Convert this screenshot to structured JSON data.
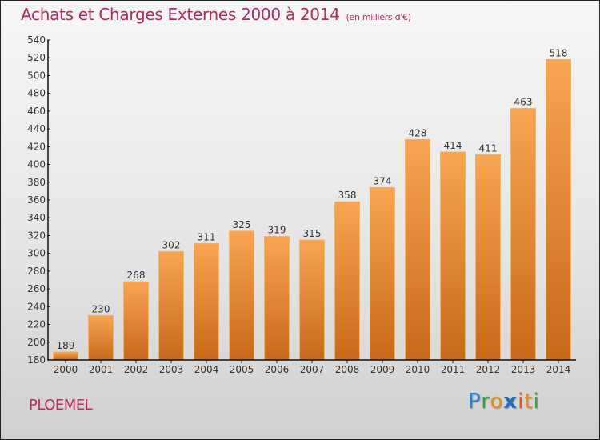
{
  "header": {
    "title": "Achats et Charges Externes 2000 à 2014",
    "unit": "(en milliers d'€)"
  },
  "footer": {
    "city": "PLOEMEL",
    "logo": {
      "letters": [
        {
          "char": "P",
          "color": "#2a7fd0"
        },
        {
          "char": "r",
          "color": "#3aa040"
        },
        {
          "char": "o",
          "color": "#f08a1a"
        },
        {
          "char": "x",
          "color": "#1e6fc8"
        },
        {
          "char": "i",
          "color": "#e8501e"
        },
        {
          "char": "t",
          "color": "#f08a1a"
        },
        {
          "char": "i",
          "color": "#3aa040"
        }
      ]
    }
  },
  "colors": {
    "bar_top": "#f8a552",
    "bar_bottom": "#c8691a",
    "title": "#b8285e"
  },
  "chart_data": {
    "type": "bar",
    "title": "Achats et Charges Externes 2000 à 2014",
    "subtitle": "(en milliers d'€)",
    "xlabel": "",
    "ylabel": "",
    "categories": [
      "2000",
      "2001",
      "2002",
      "2003",
      "2004",
      "2005",
      "2006",
      "2007",
      "2008",
      "2009",
      "2010",
      "2011",
      "2012",
      "2013",
      "2014"
    ],
    "values": [
      189,
      230,
      268,
      302,
      311,
      325,
      319,
      315,
      358,
      374,
      428,
      414,
      411,
      463,
      518
    ],
    "ylim": [
      180,
      540
    ],
    "yticks": [
      180,
      200,
      220,
      240,
      260,
      280,
      300,
      320,
      340,
      360,
      380,
      400,
      420,
      440,
      460,
      480,
      500,
      520,
      540
    ],
    "grid": false,
    "legend": "none"
  }
}
